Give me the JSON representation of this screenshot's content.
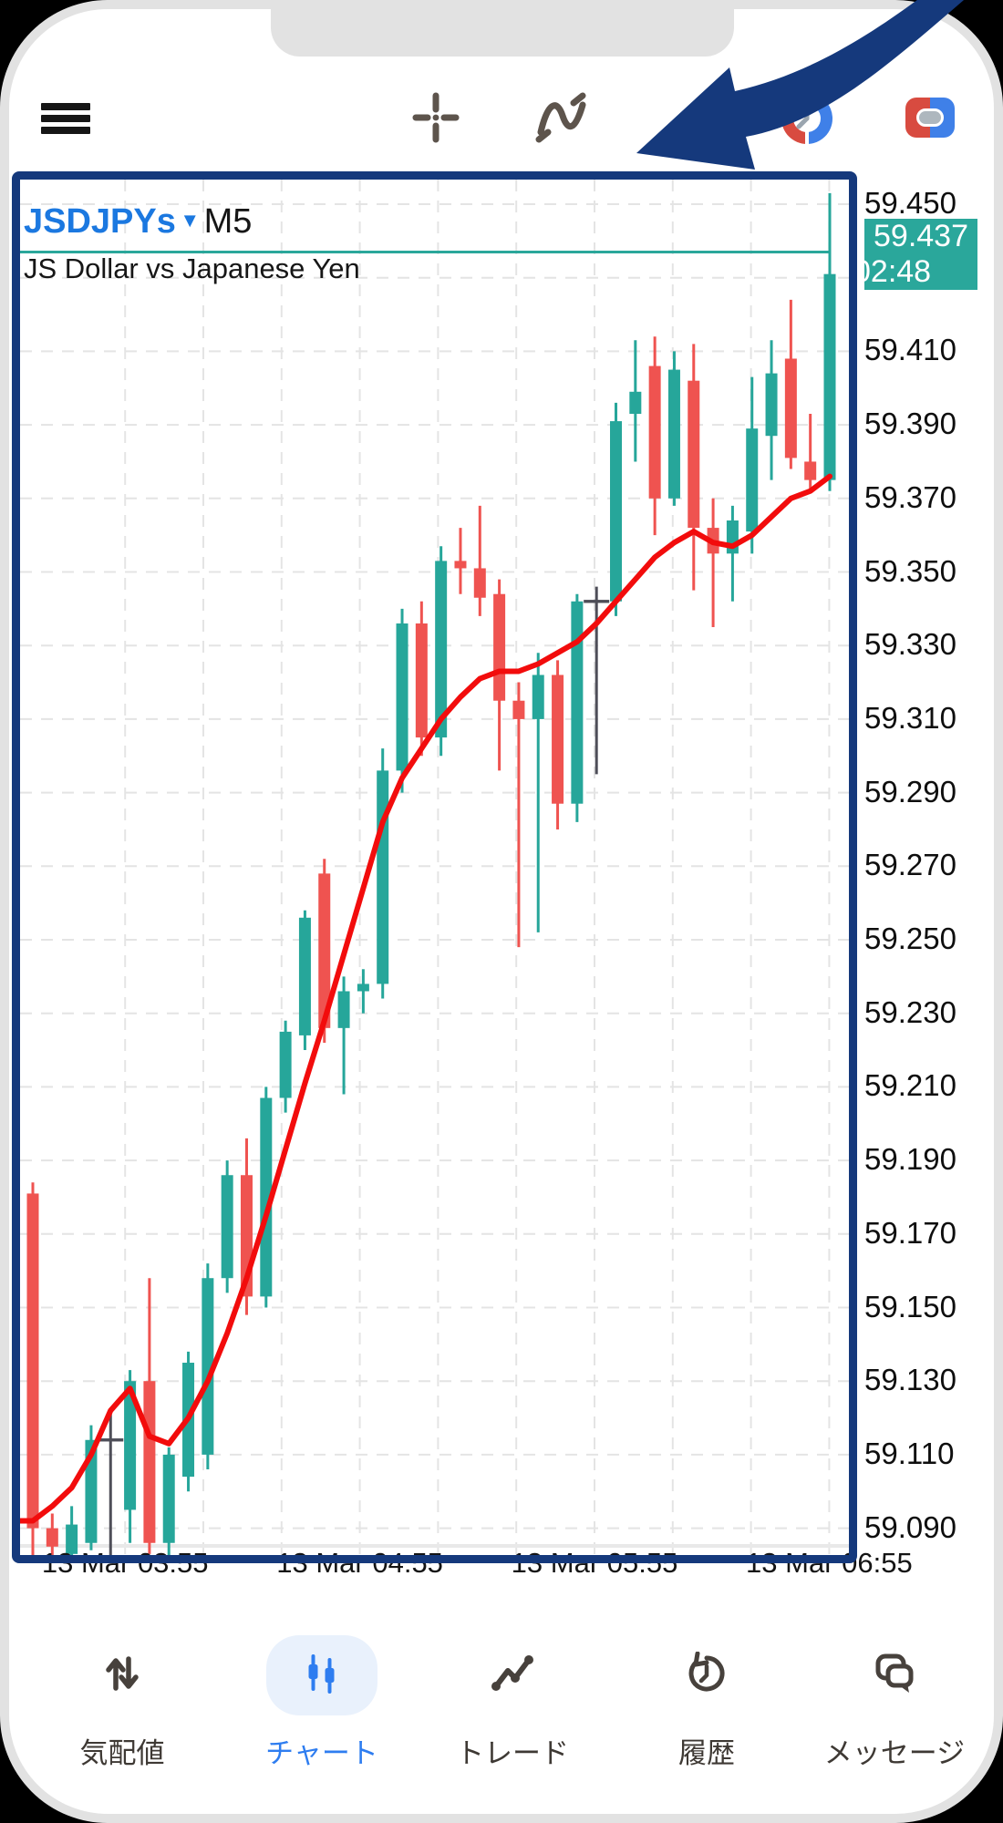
{
  "toolbar": {
    "menu_icon": "hamburger-menu",
    "crosshair_icon": "crosshair",
    "indicator_icon": "indicators-wave",
    "clock_icon": "trading-sessions-clock",
    "toggle_icon": "order-toggle",
    "accent_navy": "#15397c"
  },
  "chart": {
    "symbol": "JSDJPYs",
    "dropdown_caret": "▼",
    "timeframe": "M5",
    "description": "JS Dollar vs Japanese Yen",
    "badge": {
      "price": "59.437",
      "time": "02:48"
    },
    "price_labels": [
      "59.450",
      "59.410",
      "59.390",
      "59.370",
      "59.350",
      "59.330",
      "59.310",
      "59.290",
      "59.270",
      "59.250",
      "59.230",
      "59.210",
      "59.190",
      "59.170",
      "59.150",
      "59.130",
      "59.110",
      "59.090"
    ],
    "time_labels": [
      "13 Mar 03:55",
      "13 Mar 04:55",
      "13 Mar 05:55",
      "13 Mar 06:55"
    ],
    "colors": {
      "bull": "#26a69a",
      "bear": "#ef5350",
      "doji": "#4e4e58",
      "ma_line": "#f20c0c",
      "bid_line": "#2aa79b",
      "grid": "#e4e4e4",
      "symbol_blue": "#1b78e0"
    }
  },
  "chart_data": {
    "type": "candlestick",
    "symbol": "JSDJPYs",
    "timeframe": "M5",
    "title": "JS Dollar vs Japanese Yen",
    "y_ticks": [
      59.45,
      59.41,
      59.39,
      59.37,
      59.35,
      59.33,
      59.31,
      59.29,
      59.27,
      59.25,
      59.23,
      59.21,
      59.19,
      59.17,
      59.15,
      59.13,
      59.11,
      59.09
    ],
    "y_range": [
      59.075,
      59.457
    ],
    "x_labels": [
      "13 Mar 03:55",
      "13 Mar 04:55",
      "13 Mar 05:55",
      "13 Mar 06:55"
    ],
    "current_price": 59.437,
    "current_time": "02:48",
    "grid": "dashed",
    "candles": [
      {
        "o": 59.181,
        "h": 59.184,
        "l": 59.079,
        "c": 59.09,
        "t": "r"
      },
      {
        "o": 59.09,
        "h": 59.094,
        "l": 59.073,
        "c": 59.085,
        "t": "r"
      },
      {
        "o": 59.083,
        "h": 59.096,
        "l": 59.078,
        "c": 59.091,
        "t": "g"
      },
      {
        "o": 59.086,
        "h": 59.118,
        "l": 59.084,
        "c": 59.114,
        "t": "g"
      },
      {
        "o": 59.114,
        "h": 59.122,
        "l": 59.075,
        "c": 59.114,
        "t": "d"
      },
      {
        "o": 59.095,
        "h": 59.133,
        "l": 59.086,
        "c": 59.13,
        "t": "g"
      },
      {
        "o": 59.13,
        "h": 59.158,
        "l": 59.083,
        "c": 59.086,
        "t": "r"
      },
      {
        "o": 59.086,
        "h": 59.112,
        "l": 59.082,
        "c": 59.11,
        "t": "g"
      },
      {
        "o": 59.104,
        "h": 59.138,
        "l": 59.1,
        "c": 59.135,
        "t": "g"
      },
      {
        "o": 59.11,
        "h": 59.162,
        "l": 59.106,
        "c": 59.158,
        "t": "g"
      },
      {
        "o": 59.158,
        "h": 59.19,
        "l": 59.154,
        "c": 59.186,
        "t": "g"
      },
      {
        "o": 59.186,
        "h": 59.196,
        "l": 59.148,
        "c": 59.153,
        "t": "r"
      },
      {
        "o": 59.153,
        "h": 59.21,
        "l": 59.15,
        "c": 59.207,
        "t": "g"
      },
      {
        "o": 59.207,
        "h": 59.228,
        "l": 59.203,
        "c": 59.225,
        "t": "g"
      },
      {
        "o": 59.224,
        "h": 59.258,
        "l": 59.22,
        "c": 59.256,
        "t": "g"
      },
      {
        "o": 59.268,
        "h": 59.272,
        "l": 59.222,
        "c": 59.226,
        "t": "r"
      },
      {
        "o": 59.226,
        "h": 59.24,
        "l": 59.208,
        "c": 59.236,
        "t": "g"
      },
      {
        "o": 59.236,
        "h": 59.242,
        "l": 59.23,
        "c": 59.238,
        "t": "g"
      },
      {
        "o": 59.238,
        "h": 59.302,
        "l": 59.234,
        "c": 59.296,
        "t": "g"
      },
      {
        "o": 59.296,
        "h": 59.34,
        "l": 59.29,
        "c": 59.336,
        "t": "g"
      },
      {
        "o": 59.336,
        "h": 59.342,
        "l": 59.3,
        "c": 59.305,
        "t": "r"
      },
      {
        "o": 59.305,
        "h": 59.357,
        "l": 59.3,
        "c": 59.353,
        "t": "g"
      },
      {
        "o": 59.353,
        "h": 59.362,
        "l": 59.344,
        "c": 59.351,
        "t": "r"
      },
      {
        "o": 59.351,
        "h": 59.368,
        "l": 59.338,
        "c": 59.343,
        "t": "r"
      },
      {
        "o": 59.344,
        "h": 59.348,
        "l": 59.296,
        "c": 59.315,
        "t": "r"
      },
      {
        "o": 59.315,
        "h": 59.32,
        "l": 59.248,
        "c": 59.31,
        "t": "r"
      },
      {
        "o": 59.31,
        "h": 59.328,
        "l": 59.252,
        "c": 59.322,
        "t": "g"
      },
      {
        "o": 59.322,
        "h": 59.326,
        "l": 59.28,
        "c": 59.287,
        "t": "r"
      },
      {
        "o": 59.287,
        "h": 59.344,
        "l": 59.282,
        "c": 59.342,
        "t": "g"
      },
      {
        "o": 59.342,
        "h": 59.346,
        "l": 59.295,
        "c": 59.342,
        "t": "d"
      },
      {
        "o": 59.342,
        "h": 59.396,
        "l": 59.338,
        "c": 59.391,
        "t": "g"
      },
      {
        "o": 59.393,
        "h": 59.413,
        "l": 59.38,
        "c": 59.399,
        "t": "g"
      },
      {
        "o": 59.406,
        "h": 59.414,
        "l": 59.36,
        "c": 59.37,
        "t": "r"
      },
      {
        "o": 59.37,
        "h": 59.41,
        "l": 59.368,
        "c": 59.405,
        "t": "g"
      },
      {
        "o": 59.402,
        "h": 59.412,
        "l": 59.345,
        "c": 59.362,
        "t": "r"
      },
      {
        "o": 59.362,
        "h": 59.37,
        "l": 59.335,
        "c": 59.355,
        "t": "r"
      },
      {
        "o": 59.355,
        "h": 59.368,
        "l": 59.342,
        "c": 59.364,
        "t": "g"
      },
      {
        "o": 59.361,
        "h": 59.403,
        "l": 59.355,
        "c": 59.389,
        "t": "g"
      },
      {
        "o": 59.387,
        "h": 59.413,
        "l": 59.375,
        "c": 59.404,
        "t": "g"
      },
      {
        "o": 59.408,
        "h": 59.424,
        "l": 59.378,
        "c": 59.381,
        "t": "r"
      },
      {
        "o": 59.38,
        "h": 59.393,
        "l": 59.372,
        "c": 59.375,
        "t": "r"
      },
      {
        "o": 59.375,
        "h": 59.453,
        "l": 59.372,
        "c": 59.431,
        "t": "g"
      }
    ],
    "ma_line": [
      59.092,
      59.096,
      59.101,
      59.11,
      59.122,
      59.128,
      59.115,
      59.113,
      59.12,
      59.13,
      59.143,
      59.158,
      59.175,
      59.193,
      59.211,
      59.228,
      59.246,
      59.264,
      59.282,
      59.294,
      59.302,
      59.31,
      59.316,
      59.321,
      59.323,
      59.323,
      59.325,
      59.328,
      59.331,
      59.336,
      59.342,
      59.348,
      59.354,
      59.358,
      59.361,
      59.358,
      59.357,
      59.36,
      59.365,
      59.37,
      59.372,
      59.376
    ],
    "legend_position": "none"
  },
  "bottom_nav": {
    "items": [
      {
        "label": "気配値",
        "icon": "quotes-arrows",
        "active": false
      },
      {
        "label": "チャート",
        "icon": "chart-candles",
        "active": true
      },
      {
        "label": "トレード",
        "icon": "trade-zigzag",
        "active": false
      },
      {
        "label": "履歴",
        "icon": "history-clock",
        "active": false
      },
      {
        "label": "メッセージ",
        "icon": "messages-bubbles",
        "active": false
      }
    ],
    "active_color": "#2e7df0",
    "inactive_color": "#3e3934"
  }
}
